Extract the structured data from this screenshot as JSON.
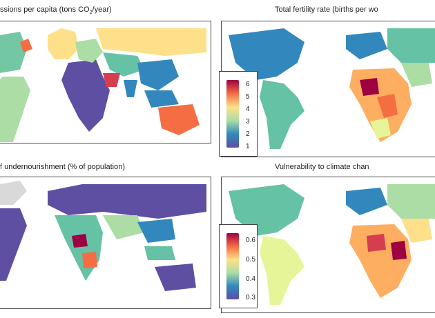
{
  "panels": [
    {
      "title_pre": "ssions per capita (tons CO",
      "title_sub": "2",
      "title_post": "/year)"
    },
    {
      "title": "Total fertility rate (births per wo"
    },
    {
      "title": "f undernourishment (% of population)"
    },
    {
      "title": "Vulnerability to climate chan"
    }
  ],
  "legends": {
    "fertility": {
      "ticks": [
        "6",
        "5",
        "4",
        "3",
        "2",
        "1"
      ],
      "colormap": "spectral-reversed"
    },
    "vulnerability": {
      "ticks": [
        "0.6",
        "0.5",
        "0.4",
        "0.3"
      ],
      "colormap": "spectral-reversed"
    }
  },
  "colors": {
    "low": "#3b4cc0",
    "mid": "#f7f7a0",
    "high": "#b2182b"
  }
}
